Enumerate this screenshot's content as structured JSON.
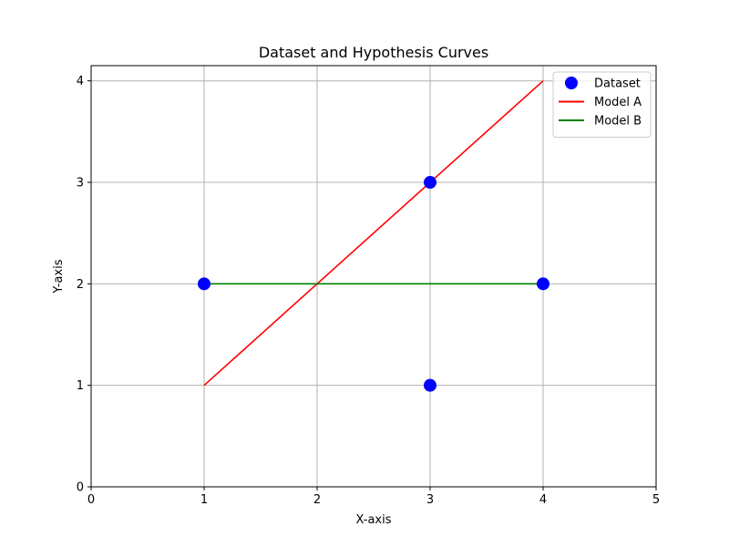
{
  "chart_data": {
    "type": "line",
    "title": "Dataset and Hypothesis Curves",
    "xlabel": "X-axis",
    "ylabel": "Y-axis",
    "xlim": [
      0,
      5
    ],
    "ylim": [
      0,
      4.15
    ],
    "xticks": [
      0,
      1,
      2,
      3,
      4,
      5
    ],
    "yticks": [
      0,
      1,
      2,
      3,
      4
    ],
    "grid": true,
    "legend_position": "top-right",
    "series": [
      {
        "name": "Dataset",
        "kind": "scatter",
        "color": "#0000ff",
        "points": [
          [
            1,
            2
          ],
          [
            3,
            3
          ],
          [
            3,
            1
          ],
          [
            4,
            2
          ]
        ]
      },
      {
        "name": "Model A",
        "kind": "line",
        "color": "#ff0000",
        "points": [
          [
            1,
            1
          ],
          [
            4,
            4
          ]
        ]
      },
      {
        "name": "Model B",
        "kind": "line",
        "color": "#008000",
        "points": [
          [
            1,
            2
          ],
          [
            4,
            2
          ]
        ]
      }
    ]
  }
}
